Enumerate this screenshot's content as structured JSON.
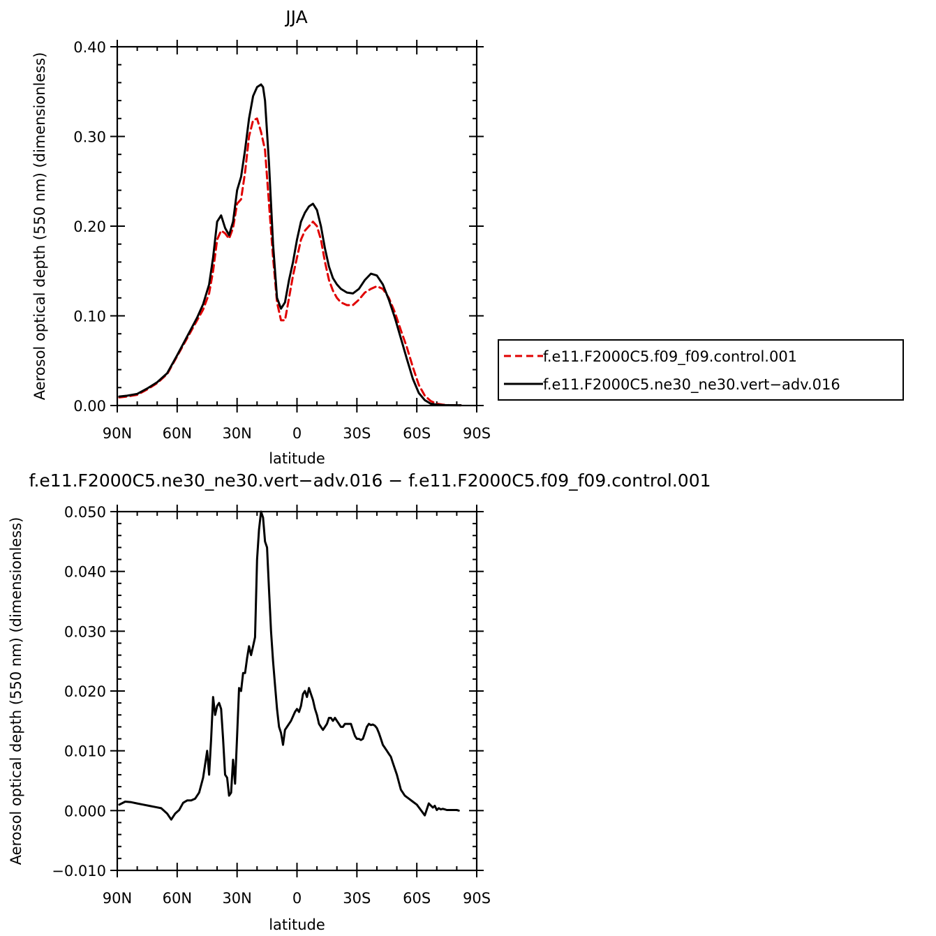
{
  "chart_data": [
    {
      "type": "line",
      "title": "JJA",
      "xlabel": "latitude",
      "ylabel": "Aerosol optical depth (550 nm) (dimensionless)",
      "xlim": [
        90,
        -90
      ],
      "ylim": [
        0,
        0.4
      ],
      "xticks": [
        90,
        60,
        30,
        0,
        -30,
        -60,
        -90
      ],
      "xtick_labels": [
        "90N",
        "60N",
        "30N",
        "0",
        "30S",
        "60S",
        "90S"
      ],
      "yticks": [
        0,
        0.1,
        0.2,
        0.3,
        0.4
      ],
      "ytick_labels": [
        "0.00",
        "0.10",
        "0.20",
        "0.30",
        "0.40"
      ],
      "legend_position": "right",
      "series": [
        {
          "name": "f.e11.F2000C5.f09_f09.control.001",
          "color": "#e00000",
          "dash": "dashed",
          "x": [
            89,
            85,
            80,
            75,
            70,
            65,
            60,
            55,
            50,
            47,
            44,
            42,
            40,
            38,
            36,
            34,
            32,
            30,
            28,
            26,
            24,
            22,
            20,
            18,
            16,
            14,
            12,
            10,
            8,
            6,
            4,
            2,
            0,
            -2,
            -4,
            -6,
            -8,
            -10,
            -12,
            -14,
            -16,
            -18,
            -20,
            -22,
            -25,
            -28,
            -31,
            -34,
            -37,
            -40,
            -43,
            -46,
            -49,
            -52,
            -55,
            -58,
            -61,
            -64,
            -67,
            -70,
            -73,
            -76,
            -80,
            -82
          ],
          "y": [
            0.009,
            0.01,
            0.012,
            0.018,
            0.025,
            0.035,
            0.055,
            0.075,
            0.095,
            0.107,
            0.125,
            0.15,
            0.185,
            0.195,
            0.192,
            0.186,
            0.198,
            0.225,
            0.23,
            0.26,
            0.3,
            0.318,
            0.32,
            0.305,
            0.285,
            0.225,
            0.165,
            0.115,
            0.095,
            0.095,
            0.12,
            0.145,
            0.165,
            0.185,
            0.195,
            0.2,
            0.205,
            0.2,
            0.185,
            0.16,
            0.14,
            0.128,
            0.12,
            0.115,
            0.112,
            0.112,
            0.118,
            0.126,
            0.13,
            0.133,
            0.13,
            0.12,
            0.104,
            0.084,
            0.065,
            0.043,
            0.023,
            0.011,
            0.005,
            0.002,
            0.001,
            0.0005,
            0.0004,
            0.0003
          ]
        },
        {
          "name": "f.e11.F2000C5.ne30_ne30.vert−adv.016",
          "color": "#000000",
          "dash": "solid",
          "x": [
            89,
            85,
            80,
            75,
            70,
            65,
            60,
            55,
            50,
            47,
            44,
            42,
            40,
            38,
            36,
            34,
            32,
            30,
            28,
            26,
            24,
            22,
            20,
            18,
            17,
            16,
            14,
            12,
            10,
            8,
            6,
            4,
            2,
            0,
            -2,
            -4,
            -6,
            -8,
            -10,
            -12,
            -14,
            -16,
            -18,
            -20,
            -22,
            -25,
            -28,
            -31,
            -34,
            -37,
            -40,
            -43,
            -46,
            -49,
            -52,
            -55,
            -58,
            -61,
            -64,
            -67,
            -70,
            -73,
            -76,
            -80,
            -82
          ],
          "y": [
            0.01,
            0.011,
            0.013,
            0.019,
            0.026,
            0.036,
            0.056,
            0.077,
            0.098,
            0.113,
            0.135,
            0.165,
            0.205,
            0.212,
            0.198,
            0.19,
            0.205,
            0.24,
            0.255,
            0.285,
            0.32,
            0.345,
            0.355,
            0.358,
            0.355,
            0.34,
            0.27,
            0.18,
            0.12,
            0.108,
            0.115,
            0.14,
            0.16,
            0.185,
            0.205,
            0.215,
            0.222,
            0.225,
            0.218,
            0.2,
            0.175,
            0.155,
            0.142,
            0.135,
            0.13,
            0.126,
            0.125,
            0.13,
            0.14,
            0.147,
            0.145,
            0.135,
            0.118,
            0.098,
            0.075,
            0.052,
            0.03,
            0.014,
            0.006,
            0.002,
            0.001,
            0.0005,
            0.0004,
            0.0003,
            0.0003
          ]
        }
      ]
    },
    {
      "type": "line",
      "title": "f.e11.F2000C5.ne30_ne30.vert−adv.016 − f.e11.F2000C5.f09_f09.control.001",
      "xlabel": "latitude",
      "ylabel": "Aerosol optical depth (550 nm) (dimensionless)",
      "xlim": [
        90,
        -90
      ],
      "ylim": [
        -0.01,
        0.05
      ],
      "xticks": [
        90,
        60,
        30,
        0,
        -30,
        -60,
        -90
      ],
      "xtick_labels": [
        "90N",
        "60N",
        "30N",
        "0",
        "30S",
        "60S",
        "90S"
      ],
      "yticks": [
        -0.01,
        0,
        0.01,
        0.02,
        0.03,
        0.04,
        0.05
      ],
      "ytick_labels": [
        "−0.010",
        "0.000",
        "0.010",
        "0.020",
        "0.030",
        "0.040",
        "0.050"
      ],
      "series": [
        {
          "color": "#000000",
          "dash": "solid",
          "x": [
            89,
            86,
            83,
            80,
            77,
            74,
            71,
            68,
            65,
            63,
            61,
            59,
            57,
            55,
            53,
            51,
            49,
            47,
            45,
            44,
            43,
            42,
            41,
            40,
            39,
            38,
            37,
            36,
            35,
            34,
            33,
            32,
            31,
            30,
            29,
            28,
            27,
            26,
            25,
            24,
            23,
            22,
            21,
            20,
            19,
            18,
            17,
            16,
            15,
            14,
            13,
            12,
            11,
            10,
            9,
            8,
            7,
            6,
            5,
            3,
            1,
            0,
            -1,
            -2,
            -3,
            -4,
            -5,
            -6,
            -7,
            -8,
            -9,
            -10,
            -11,
            -12,
            -13,
            -14,
            -15,
            -16,
            -17,
            -18,
            -19,
            -20,
            -21,
            -22,
            -23,
            -24,
            -25,
            -26,
            -27,
            -28,
            -29,
            -30,
            -31,
            -32,
            -33,
            -34,
            -35,
            -36,
            -37,
            -38,
            -39,
            -40,
            -41,
            -42,
            -43,
            -44,
            -45,
            -46,
            -47,
            -48,
            -49,
            -50,
            -52,
            -54,
            -56,
            -58,
            -60,
            -62,
            -64,
            -66,
            -68,
            -69,
            -70,
            -71,
            -72,
            -73,
            -74,
            -75,
            -76,
            -78,
            -80,
            -81
          ],
          "y": [
            0.001,
            0.0015,
            0.0014,
            0.0012,
            0.001,
            0.0008,
            0.0006,
            0.0004,
            -0.0005,
            -0.0015,
            -0.0005,
            0.0001,
            0.0013,
            0.0017,
            0.0017,
            0.002,
            0.003,
            0.0055,
            0.01,
            0.006,
            0.012,
            0.019,
            0.016,
            0.0175,
            0.018,
            0.017,
            0.012,
            0.006,
            0.0055,
            0.0025,
            0.003,
            0.0085,
            0.0045,
            0.0125,
            0.0205,
            0.02,
            0.023,
            0.023,
            0.0255,
            0.0275,
            0.026,
            0.0275,
            0.029,
            0.042,
            0.047,
            0.05,
            0.049,
            0.045,
            0.044,
            0.037,
            0.03,
            0.025,
            0.021,
            0.017,
            0.014,
            0.013,
            0.011,
            0.0135,
            0.014,
            0.015,
            0.0165,
            0.017,
            0.0165,
            0.0175,
            0.0195,
            0.02,
            0.019,
            0.0205,
            0.0195,
            0.0185,
            0.017,
            0.016,
            0.0145,
            0.014,
            0.0135,
            0.014,
            0.0145,
            0.0155,
            0.0155,
            0.015,
            0.0155,
            0.015,
            0.0145,
            0.014,
            0.014,
            0.0145,
            0.0145,
            0.0145,
            0.0145,
            0.0135,
            0.0125,
            0.012,
            0.012,
            0.0118,
            0.012,
            0.013,
            0.014,
            0.0145,
            0.0143,
            0.0144,
            0.0142,
            0.0138,
            0.013,
            0.012,
            0.011,
            0.0105,
            0.01,
            0.0095,
            0.009,
            0.008,
            0.007,
            0.006,
            0.0035,
            0.0025,
            0.002,
            0.0015,
            0.001,
            0.0001,
            -0.0008,
            0.0012,
            0.0005,
            0.0008,
            0.0001,
            0.0004,
            0.0002,
            0.0003,
            0.0002,
            0.0001,
            0.0001,
            0.0001,
            0.0001,
            0
          ]
        }
      ]
    }
  ]
}
